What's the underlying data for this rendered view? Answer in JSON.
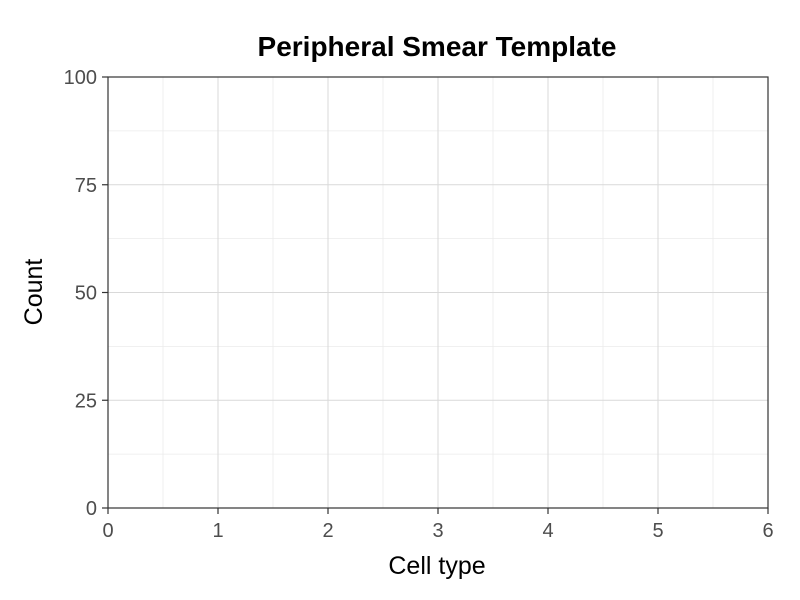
{
  "chart_data": {
    "type": "bar",
    "title": "Peripheral Smear Template",
    "xlabel": "Cell type",
    "ylabel": "Count",
    "xlim": [
      0,
      6
    ],
    "ylim": [
      0,
      100
    ],
    "x_ticks": [
      0,
      1,
      2,
      3,
      4,
      5,
      6
    ],
    "y_ticks": [
      0,
      25,
      50,
      75,
      100
    ],
    "x_minor_ticks": [
      0.5,
      1.5,
      2.5,
      3.5,
      4.5,
      5.5
    ],
    "y_minor_ticks": [
      12.5,
      37.5,
      62.5,
      87.5
    ],
    "grid": true,
    "legend": "none",
    "series": [],
    "colors": {
      "major_grid": "#d9d9d9",
      "minor_grid": "#ebebeb",
      "axis": "#333333",
      "background": "#ffffff"
    }
  }
}
